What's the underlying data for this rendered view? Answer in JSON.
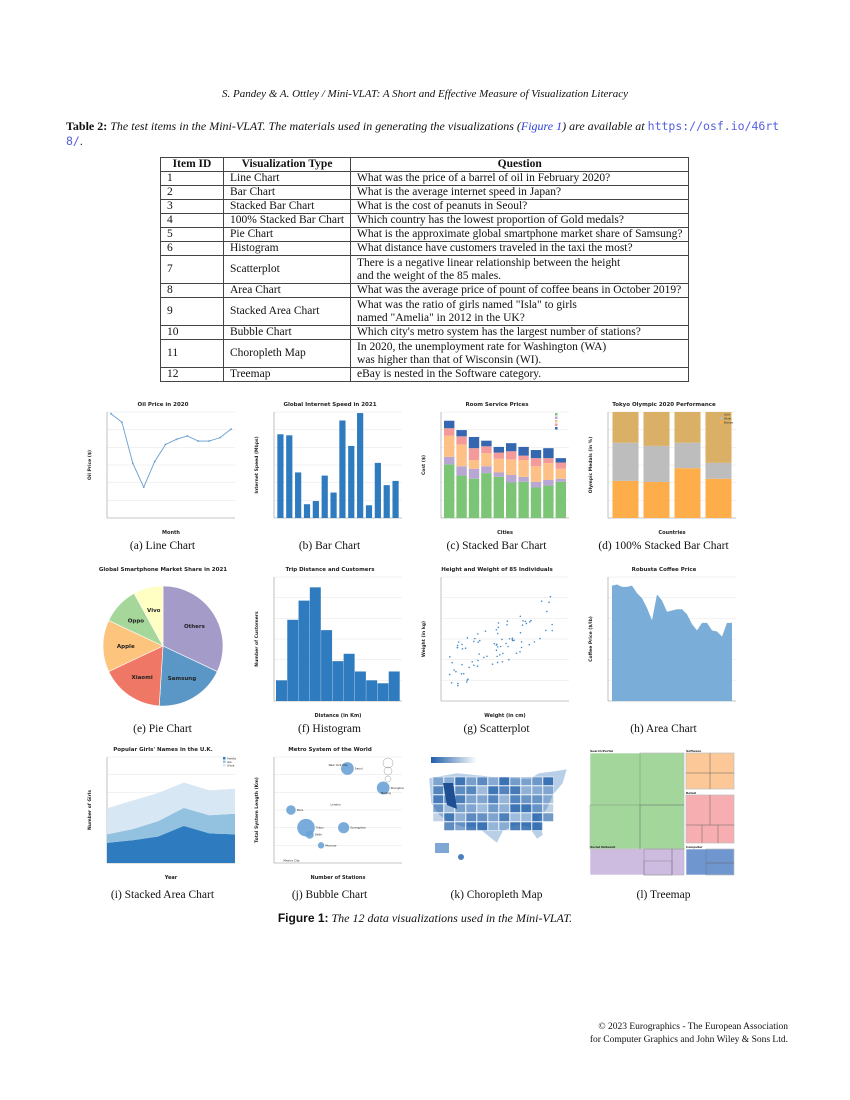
{
  "running_header": "S. Pandey & A. Ottley / Mini-VLAT: A Short and Effective Measure of Visualization Literacy",
  "table_caption": {
    "label": "Table 2:",
    "text_before": "The test items in the Mini-VLAT. The materials used in generating the visualizations (",
    "figure_link": "Figure 1",
    "text_after": ") are available at ",
    "url": "https://osf.io/46rt8/",
    "end": "."
  },
  "table": {
    "headers": [
      "Item ID",
      "Visualization Type",
      "Question"
    ],
    "rows": [
      {
        "id": "1",
        "type": "Line Chart",
        "q1": "What was the price of a barrel of oil in February 2020?",
        "q2": ""
      },
      {
        "id": "2",
        "type": "Bar Chart",
        "q1": "What is the average internet speed in Japan?",
        "q2": ""
      },
      {
        "id": "3",
        "type": "Stacked Bar Chart",
        "q1": "What is the cost of peanuts in Seoul?",
        "q2": ""
      },
      {
        "id": "4",
        "type": "100% Stacked Bar Chart",
        "q1": "Which country has the lowest proportion of Gold medals?",
        "q2": ""
      },
      {
        "id": "5",
        "type": "Pie Chart",
        "q1": "What is the approximate global smartphone market share of Samsung?",
        "q2": ""
      },
      {
        "id": "6",
        "type": "Histogram",
        "q1": "What distance have customers traveled in the taxi the most?",
        "q2": ""
      },
      {
        "id": "7",
        "type": "Scatterplot",
        "q1": "There is a negative linear relationship between the height",
        "q2": "and the weight of the 85 males."
      },
      {
        "id": "8",
        "type": "Area Chart",
        "q1": "What was the average price of pount of coffee beans in October 2019?",
        "q2": ""
      },
      {
        "id": "9",
        "type": "Stacked Area Chart",
        "q1": "What was the ratio of girls named \"Isla\" to girls",
        "q2": "named \"Amelia\" in 2012 in the UK?"
      },
      {
        "id": "10",
        "type": "Bubble Chart",
        "q1": "Which city's metro system has the largest number of stations?",
        "q2": ""
      },
      {
        "id": "11",
        "type": "Choropleth Map",
        "q1": "In 2020, the unemployment rate for Washington (WA)",
        "q2": "was higher than that of Wisconsin (WI)."
      },
      {
        "id": "12",
        "type": "Treemap",
        "q1": "eBay is nested in the Software category.",
        "q2": ""
      }
    ]
  },
  "figure": {
    "label": "Figure 1:",
    "caption": "The 12 data visualizations used in the Mini-VLAT.",
    "panels": [
      {
        "caption": "(a) Line Chart",
        "type": "line",
        "title": "Oil Price in 2020",
        "xlabel": "Month",
        "ylabel": "Oil Price ($)",
        "color": "#6a9fd0",
        "values": [
          61,
          56,
          32,
          18,
          33,
          43,
          46,
          48,
          45,
          45,
          47,
          52
        ],
        "ymax": 62
      },
      {
        "caption": "(b) Bar Chart",
        "type": "bar",
        "title": "Global Internet Speed in 2021",
        "xlabel": "",
        "ylabel": "Internet Speed (Mbps)",
        "color": "#2f7bbf",
        "values": [
          79,
          78,
          43,
          13,
          16,
          40,
          24,
          92,
          68,
          99,
          12,
          52,
          31,
          35
        ],
        "ymax": 100
      },
      {
        "caption": "(c) Stacked Bar Chart",
        "type": "stack",
        "title": "Room Service Prices",
        "xlabel": "Cities",
        "ylabel": "Cost ($)",
        "colors": [
          "#7cc576",
          "#b9a7d3",
          "#fdc086",
          "#f49a9a",
          "#3467b0"
        ],
        "ymax": 17,
        "series": [
          [
            8.6,
            6.8,
            6.3,
            7.2,
            6.6,
            5.7,
            5.8,
            4.9,
            5.2,
            5.8
          ],
          [
            1.2,
            1.5,
            1.6,
            1.1,
            0.7,
            1.2,
            0.8,
            0.9,
            0.9,
            0.5
          ],
          [
            3.4,
            3.5,
            1.4,
            2.1,
            2.2,
            2.5,
            2.7,
            2.5,
            2.7,
            1.6
          ],
          [
            1.2,
            1.3,
            1.9,
            1.1,
            1.0,
            1.3,
            0.7,
            1.3,
            0.8,
            1.0
          ],
          [
            1.2,
            1.0,
            1.8,
            0.9,
            0.9,
            1.3,
            1.4,
            1.3,
            1.6,
            0.7
          ]
        ]
      },
      {
        "caption": "(d) 100% Stacked Bar Chart",
        "type": "stack",
        "title": "Tokyo Olympic 2020 Performance",
        "xlabel": "Countries",
        "ylabel": "Olympic Medals (in %)",
        "colors": [
          "#fdae4b",
          "#bdbdbd",
          "#d9b066"
        ],
        "ymax": 100,
        "legend": [
          "Gold",
          "Silver",
          "Bronze"
        ],
        "series": [
          [
            35,
            34,
            47,
            37
          ],
          [
            36,
            34,
            24,
            15
          ],
          [
            29,
            32,
            29,
            48
          ]
        ]
      },
      {
        "caption": "(e) Pie Chart",
        "type": "pie",
        "title": "Global Smartphone Market Share in 2021",
        "labels": [
          "Others",
          "Samsung",
          "Xiaomi",
          "Apple",
          "Oppo",
          "Vivo"
        ],
        "values": [
          32,
          19,
          17,
          14,
          10,
          8
        ],
        "colors": [
          "#a59bc9",
          "#5b97c6",
          "#ef7766",
          "#fdc47d",
          "#a6d79a",
          "#ffffc4"
        ]
      },
      {
        "caption": "(f) Histogram",
        "type": "hist",
        "title": "Trip Distance and Customers",
        "xlabel": "Distance (in Km)",
        "ylabel": "Number of Customers",
        "color": "#2f7bbf",
        "values": [
          700,
          2750,
          3400,
          3850,
          2400,
          1350,
          1600,
          1000,
          700,
          600,
          1000
        ],
        "ymax": 4200
      },
      {
        "caption": "(g) Scatterplot",
        "type": "scatter",
        "title": "Height and Weight of 85 Individuals",
        "xlabel": "Weight (in cm)",
        "ylabel": "Weight (in kg)",
        "color": "#4a8cc4"
      },
      {
        "caption": "(h) Area Chart",
        "type": "area",
        "title": "Robusta Coffee Price",
        "xlabel": "",
        "ylabel": "Coffee Price ($/lb)",
        "color": "#7aaed8",
        "values": [
          0.93,
          0.94,
          0.92,
          0.92,
          0.93,
          0.87,
          0.83,
          0.75,
          0.65,
          0.86,
          0.81,
          0.72,
          0.73,
          0.74,
          0.74,
          0.7,
          0.62,
          0.57,
          0.63,
          0.63,
          0.57,
          0.56,
          0.52,
          0.63,
          0.63
        ],
        "ymax": 1.0
      },
      {
        "caption": "(i) Stacked Area Chart",
        "type": "stackarea",
        "title": "Popular Girls' Names in the U.K.",
        "xlabel": "Year",
        "ylabel": "Number of Girls",
        "legend": [
          "Amelia",
          "Isla",
          "Olivia"
        ],
        "colors": [
          "#2f7bbf",
          "#93c2e1",
          "#d8e7f4"
        ],
        "ymax": 20,
        "series": [
          [
            3.8,
            4.3,
            5.0,
            7.0,
            5.6,
            5.4
          ],
          [
            1.6,
            2.1,
            2.9,
            3.4,
            3.4,
            3.9
          ],
          [
            4.9,
            5.4,
            5.3,
            4.8,
            4.7,
            4.7
          ]
        ]
      },
      {
        "caption": "(j) Bubble Chart",
        "type": "bubble",
        "title": "Metro System of the World",
        "xlabel": "Number of Stations",
        "ylabel": "Total System Length (Km)",
        "color": "#6aa3d6",
        "points": [
          {
            "city": "Paris",
            "stations": 165,
            "length": 500,
            "size": 6
          },
          {
            "city": "Tokyo",
            "stations": 205,
            "length": 400,
            "size": 11
          },
          {
            "city": "Delhi",
            "stations": 215,
            "length": 360,
            "size": 5
          },
          {
            "city": "Moscow",
            "stations": 245,
            "length": 300,
            "size": 4
          },
          {
            "city": "Guangzhou",
            "stations": 305,
            "length": 400,
            "size": 7
          },
          {
            "city": "Seoul",
            "stations": 315,
            "length": 735,
            "size": 8
          },
          {
            "city": "Shanghai",
            "stations": 410,
            "length": 625,
            "size": 8
          },
          {
            "city": "Beijing",
            "stations": 405,
            "length": 595,
            "size": 0
          },
          {
            "city": "London",
            "stations": 270,
            "length": 530,
            "size": 0
          },
          {
            "city": "New York City",
            "stations": 265,
            "length": 755,
            "size": 0
          },
          {
            "city": "Mexico City",
            "stations": 145,
            "length": 215,
            "size": 0
          }
        ],
        "xlim": [
          120,
          460
        ],
        "ylim": [
          200,
          800
        ]
      },
      {
        "caption": "(k) Choropleth Map",
        "type": "map",
        "color": "#1f5ea8"
      },
      {
        "caption": "(l) Treemap",
        "type": "treemap",
        "groups": [
          "Search/Portal",
          "Software",
          "Retail",
          "Social Network",
          "Computer"
        ],
        "colors": [
          "#a2d69b",
          "#fdc898",
          "#f6aeb0",
          "#cdbbe0",
          "#6f96cf"
        ]
      }
    ]
  },
  "copyright": {
    "line1": "© 2023 Eurographics - The European Association",
    "line2": "for Computer Graphics and John Wiley & Sons Ltd."
  }
}
